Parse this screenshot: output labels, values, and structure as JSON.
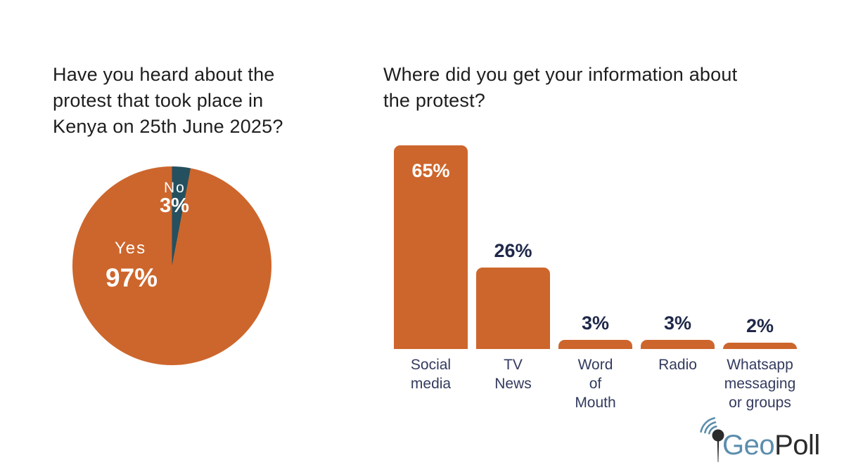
{
  "colors": {
    "orange": "#CD662C",
    "teal": "#24505F",
    "value_text": "#1F2849",
    "category_text": "#333A5E",
    "title_text": "#1E1E1E",
    "pie_label_text": "#FFFFFF",
    "logo_blue": "#5C8DAD",
    "logo_dark": "#2B2B2B",
    "background": "#FFFFFF"
  },
  "pie_chart": {
    "title": "Have you heard about the\nprotest that took place in\nKenya on 25th June 2025?",
    "slices": [
      {
        "label": "Yes",
        "value": 97,
        "value_label": "97%",
        "color": "#CD662C"
      },
      {
        "label": "No",
        "value": 3,
        "value_label": "3%",
        "color": "#24505F"
      }
    ]
  },
  "bar_chart": {
    "title": "Where did you get your information about\nthe protest?",
    "bars": [
      {
        "category": "Social\nmedia",
        "value": 65,
        "value_label": "65%",
        "value_position": "inside"
      },
      {
        "category": "TV\nNews",
        "value": 26,
        "value_label": "26%",
        "value_position": "above"
      },
      {
        "category": "Word\nof\nMouth",
        "value": 3,
        "value_label": "3%",
        "value_position": "above"
      },
      {
        "category": "Radio",
        "value": 3,
        "value_label": "3%",
        "value_position": "above"
      },
      {
        "category": "Whatsapp\nmessaging\nor groups",
        "value": 2,
        "value_label": "2%",
        "value_position": "above"
      }
    ]
  },
  "chart_data": [
    {
      "type": "pie",
      "title": "Have you heard about the protest that took place in Kenya on 25th June 2025?",
      "labels": [
        "Yes",
        "No"
      ],
      "values": [
        97,
        3
      ],
      "unit": "%",
      "colors": [
        "#CD662C",
        "#24505F"
      ],
      "legend": false,
      "start_angle_deg": 0,
      "direction": "clockwise"
    },
    {
      "type": "bar",
      "title": "Where did you get your information about the protest?",
      "categories": [
        "Social media",
        "TV News",
        "Word of Mouth",
        "Radio",
        "Whatsapp messaging or groups"
      ],
      "values": [
        65,
        26,
        3,
        3,
        2
      ],
      "value_labels": [
        "65%",
        "26%",
        "3%",
        "3%",
        "2%"
      ],
      "unit": "%",
      "ylim": [
        0,
        65
      ],
      "grid": false,
      "legend": false,
      "bar_color": "#CD662C"
    }
  ],
  "logo": {
    "geo": "Geo",
    "poll": "Poll"
  }
}
